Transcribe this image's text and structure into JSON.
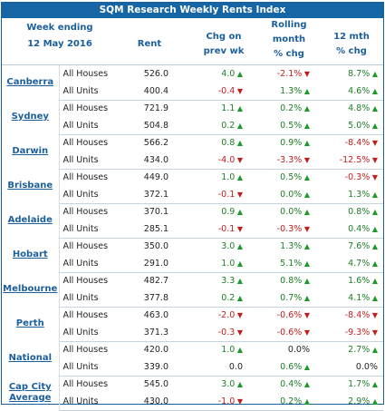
{
  "title": "SQM Research Weekly Rents Index",
  "header": {
    "week_label": "Week ending",
    "week_date": "12 May 2016",
    "rent": "Rent",
    "chg_line1": "Chg on",
    "chg_line2": "prev wk",
    "roll_line1": "Rolling",
    "roll_line2": "month",
    "roll_line3": "% chg",
    "m12_line1": "12 mth",
    "m12_line2": "% chg"
  },
  "rows": [
    {
      "city": "Canberra",
      "city2": "",
      "houses": {
        "label": "All Houses",
        "rent": "526.0",
        "chg": "4.0",
        "chg_dir": "up",
        "roll": "-2.1%",
        "roll_dir": "dn",
        "m12": "8.7%",
        "m12_dir": "up"
      },
      "units": {
        "label": "All Units",
        "rent": "400.4",
        "chg": "-0.4",
        "chg_dir": "dn",
        "roll": "1.3%",
        "roll_dir": "up",
        "m12": "4.6%",
        "m12_dir": "up"
      }
    },
    {
      "city": "Sydney",
      "city2": "",
      "houses": {
        "label": "All Houses",
        "rent": "721.9",
        "chg": "1.1",
        "chg_dir": "up",
        "roll": "0.2%",
        "roll_dir": "up",
        "m12": "4.8%",
        "m12_dir": "up"
      },
      "units": {
        "label": "All Units",
        "rent": "504.8",
        "chg": "0.2",
        "chg_dir": "up",
        "roll": "0.5%",
        "roll_dir": "up",
        "m12": "5.0%",
        "m12_dir": "up"
      }
    },
    {
      "city": "Darwin",
      "city2": "",
      "houses": {
        "label": "All Houses",
        "rent": "566.2",
        "chg": "0.8",
        "chg_dir": "up",
        "roll": "0.9%",
        "roll_dir": "up",
        "m12": "-8.4%",
        "m12_dir": "dn"
      },
      "units": {
        "label": "All Units",
        "rent": "434.0",
        "chg": "-4.0",
        "chg_dir": "dn",
        "roll": "-3.3%",
        "roll_dir": "dn",
        "m12": "-12.5%",
        "m12_dir": "dn"
      }
    },
    {
      "city": "Brisbane",
      "city2": "",
      "houses": {
        "label": "All Houses",
        "rent": "449.0",
        "chg": "1.0",
        "chg_dir": "up",
        "roll": "0.5%",
        "roll_dir": "up",
        "m12": "-0.3%",
        "m12_dir": "dn"
      },
      "units": {
        "label": "All Units",
        "rent": "372.1",
        "chg": "-0.1",
        "chg_dir": "dn",
        "roll": "0.0%",
        "roll_dir": "up",
        "m12": "1.3%",
        "m12_dir": "up"
      }
    },
    {
      "city": "Adelaide",
      "city2": "",
      "houses": {
        "label": "All Houses",
        "rent": "370.1",
        "chg": "0.9",
        "chg_dir": "up",
        "roll": "0.0%",
        "roll_dir": "up",
        "m12": "0.8%",
        "m12_dir": "up"
      },
      "units": {
        "label": "All Units",
        "rent": "285.1",
        "chg": "-0.1",
        "chg_dir": "dn",
        "roll": "-0.3%",
        "roll_dir": "dn",
        "m12": "0.4%",
        "m12_dir": "up"
      }
    },
    {
      "city": "Hobart",
      "city2": "",
      "houses": {
        "label": "All Houses",
        "rent": "350.0",
        "chg": "3.0",
        "chg_dir": "up",
        "roll": "1.3%",
        "roll_dir": "up",
        "m12": "7.6%",
        "m12_dir": "up"
      },
      "units": {
        "label": "All Units",
        "rent": "291.0",
        "chg": "1.0",
        "chg_dir": "up",
        "roll": "5.1%",
        "roll_dir": "up",
        "m12": "4.7%",
        "m12_dir": "up"
      }
    },
    {
      "city": "Melbourne",
      "city2": "",
      "houses": {
        "label": "All Houses",
        "rent": "482.7",
        "chg": "3.3",
        "chg_dir": "up",
        "roll": "0.8%",
        "roll_dir": "up",
        "m12": "1.6%",
        "m12_dir": "up"
      },
      "units": {
        "label": "All Units",
        "rent": "377.8",
        "chg": "0.2",
        "chg_dir": "up",
        "roll": "0.7%",
        "roll_dir": "up",
        "m12": "4.1%",
        "m12_dir": "up"
      }
    },
    {
      "city": "Perth",
      "city2": "",
      "houses": {
        "label": "All Houses",
        "rent": "463.0",
        "chg": "-2.0",
        "chg_dir": "dn",
        "roll": "-0.6%",
        "roll_dir": "dn",
        "m12": "-8.4%",
        "m12_dir": "dn"
      },
      "units": {
        "label": "All Units",
        "rent": "371.3",
        "chg": "-0.3",
        "chg_dir": "dn",
        "roll": "-0.6%",
        "roll_dir": "dn",
        "m12": "-9.3%",
        "m12_dir": "dn"
      }
    },
    {
      "city": "National",
      "city2": "",
      "houses": {
        "label": "All Houses",
        "rent": "420.0",
        "chg": "1.0",
        "chg_dir": "up",
        "roll": "0.0%",
        "roll_dir": "flat",
        "m12": "2.7%",
        "m12_dir": "up"
      },
      "units": {
        "label": "All Units",
        "rent": "339.0",
        "chg": "0.0",
        "chg_dir": "flat",
        "roll": "0.6%",
        "roll_dir": "up",
        "m12": "0.0%",
        "m12_dir": "flat"
      }
    },
    {
      "city": "Cap City",
      "city2": "Average",
      "houses": {
        "label": "All Houses",
        "rent": "545.0",
        "chg": "3.0",
        "chg_dir": "up",
        "roll": "0.4%",
        "roll_dir": "up",
        "m12": "1.7%",
        "m12_dir": "up"
      },
      "units": {
        "label": "All Units",
        "rent": "430.0",
        "chg": "-1.0",
        "chg_dir": "dn",
        "roll": "0.2%",
        "roll_dir": "up",
        "m12": "2.9%",
        "m12_dir": "up"
      }
    }
  ],
  "colors": {
    "title_bg": "#1666a6",
    "header_text": "#1b5f9c",
    "up_arrow": "#1d9a2b",
    "down_arrow": "#c21d1d"
  }
}
